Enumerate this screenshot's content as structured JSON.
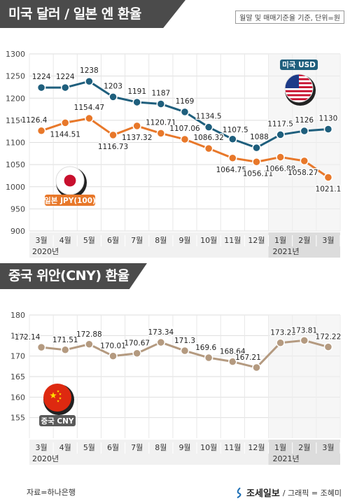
{
  "header1": {
    "title": "미국 달러 / 일본 엔 환율",
    "note": "월말 및 매매기준율 기준, 단위=원"
  },
  "header2": {
    "title": "중국 위안(CNY) 환율"
  },
  "footer": {
    "source": "자료=하나은행",
    "brand": "조세일보",
    "credit": "/ 그래픽 = 조혜미"
  },
  "colors": {
    "usd": "#1f5f7d",
    "jpy": "#e8782a",
    "cny": "#b49a80",
    "header": "#4b4b4b",
    "shade": "#e2e2e2"
  },
  "chart_data": [
    {
      "type": "line",
      "categories": [
        "3월",
        "4월",
        "5월",
        "6월",
        "7월",
        "8월",
        "9월",
        "10월",
        "11월",
        "12월",
        "1월",
        "2월",
        "3월"
      ],
      "year_labels": [
        "2020년",
        "2021년"
      ],
      "ylim": [
        900,
        1300
      ],
      "yticks": [
        900,
        950,
        1000,
        1050,
        1100,
        1150,
        1200,
        1250,
        1300
      ],
      "series": [
        {
          "name": "미국 USD",
          "values": [
            1224,
            1224,
            1238,
            1203,
            1191,
            1187,
            1169,
            1134.5,
            1107.5,
            1088,
            1117.5,
            1126,
            1130
          ],
          "labels": [
            "1224",
            "1224",
            "1238",
            "1203",
            "1191",
            "1187",
            "1169",
            "1134.5",
            "1107.5",
            "1088",
            "1117.5",
            "1126",
            "1130"
          ]
        },
        {
          "name": "일본 JPY(100)",
          "values": [
            1126.4,
            1144.51,
            1154.47,
            1116.73,
            1137.32,
            1120.71,
            1107.06,
            1086.32,
            1064.75,
            1056.11,
            1066.88,
            1058.27,
            1021.1
          ],
          "labels": [
            "1126.4",
            "1144.51",
            "1154.47",
            "1116.73",
            "1137.32",
            "1120.71",
            "1107.06",
            "1086.32",
            "1064.75",
            "1056.11",
            "1066.88",
            "1058.27",
            "1021.1"
          ]
        }
      ]
    },
    {
      "type": "line",
      "categories": [
        "3월",
        "4월",
        "5월",
        "6월",
        "7월",
        "8월",
        "9월",
        "10월",
        "11월",
        "12월",
        "1월",
        "2월",
        "3월"
      ],
      "year_labels": [
        "2020년",
        "2021년"
      ],
      "ylim": [
        150,
        180
      ],
      "yticks": [
        155,
        160,
        165,
        170,
        175,
        180
      ],
      "series": [
        {
          "name": "중국 CNY",
          "values": [
            172.14,
            171.51,
            172.88,
            170.01,
            170.67,
            173.34,
            171.3,
            169.6,
            168.64,
            167.21,
            173.23,
            173.81,
            172.22
          ],
          "labels": [
            "172.14",
            "171.51",
            "172.88",
            "170.01",
            "170.67",
            "173.34",
            "171.3",
            "169.6",
            "168.64",
            "167.21",
            "173.23",
            "173.81",
            "172.22"
          ]
        }
      ]
    }
  ]
}
